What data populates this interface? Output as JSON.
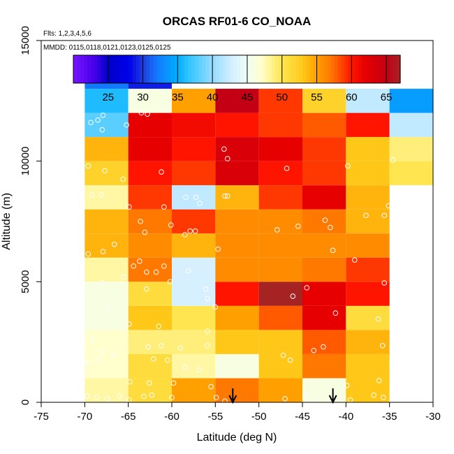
{
  "chart_data": {
    "type": "heatmap",
    "title": "ORCAS RF01-6 CO_NOAA",
    "flights_note": "Flts: 1,2,3,4,5,6",
    "mmdd_note": "MMDD: 0115,0118,0121,0123,0125,0125",
    "xlabel": "Latitude (deg N)",
    "ylabel": "Altitude (m)",
    "xlim": [
      -75,
      -30
    ],
    "ylim": [
      0,
      15000
    ],
    "x_ticks": [
      "-75",
      "-70",
      "-65",
      "-60",
      "-55",
      "-50",
      "-45",
      "-40",
      "-35",
      "-30"
    ],
    "y_ticks": [
      "0",
      "5000",
      "10000",
      "15000"
    ],
    "colorbar": {
      "range": [
        20,
        67
      ],
      "ticks": [
        "25",
        "30",
        "35",
        "40",
        "45",
        "50",
        "55",
        "60",
        "65"
      ]
    },
    "x_bin_edges": [
      -70,
      -65,
      -60,
      -55,
      -50,
      -45,
      -40,
      -35,
      -30
    ],
    "y_bin_height": 1000,
    "grid_values": [
      [
        48,
        51,
        55,
        57,
        55,
        46,
        53,
        null
      ],
      [
        47,
        51,
        48,
        46,
        53,
        57,
        53,
        null
      ],
      [
        47,
        49,
        49,
        53,
        53,
        58,
        54,
        null
      ],
      [
        46,
        53,
        50,
        55,
        58,
        62,
        51,
        null
      ],
      [
        46,
        51,
        43,
        60,
        67,
        62,
        60,
        null
      ],
      [
        48,
        57,
        43,
        56,
        56,
        57,
        59,
        null
      ],
      [
        54,
        56,
        54,
        56,
        56,
        56,
        56,
        null
      ],
      [
        54,
        57,
        59,
        56,
        56,
        57,
        54,
        null
      ],
      [
        48,
        59,
        42,
        54,
        59,
        62,
        54,
        null
      ],
      [
        52,
        60,
        59,
        63,
        60,
        59,
        53,
        50
      ],
      [
        54,
        62,
        60,
        63,
        62,
        59,
        53,
        49
      ],
      [
        38,
        62,
        61,
        60,
        59,
        58,
        60,
        42
      ],
      [
        36,
        46,
        55,
        65,
        59,
        52,
        42,
        34
      ],
      [
        32,
        29,
        null,
        null,
        null,
        null,
        null,
        null
      ]
    ],
    "samples": [
      [
        -69.3,
        11600
      ],
      [
        -68.5,
        11700
      ],
      [
        -67.9,
        11900
      ],
      [
        -68.0,
        11300
      ],
      [
        -65.2,
        11500
      ],
      [
        -63.5,
        12000
      ],
      [
        -62.8,
        11950
      ],
      [
        -54.0,
        10500
      ],
      [
        -53.6,
        10100
      ],
      [
        -46.8,
        9700
      ],
      [
        -39.8,
        9800
      ],
      [
        -34.6,
        10050
      ],
      [
        -69.6,
        9800
      ],
      [
        -67.7,
        9600
      ],
      [
        -65.6,
        9250
      ],
      [
        -61.2,
        9550
      ],
      [
        -69.2,
        8600
      ],
      [
        -68.1,
        8600
      ],
      [
        -58.4,
        8500
      ],
      [
        -57.2,
        8500
      ],
      [
        -56.8,
        8250
      ],
      [
        -53.9,
        8550
      ],
      [
        -53.6,
        8550
      ],
      [
        -64.9,
        8100
      ],
      [
        -60.9,
        8100
      ],
      [
        -63.6,
        7500
      ],
      [
        -60.1,
        7350
      ],
      [
        -63.1,
        7050
      ],
      [
        -57.9,
        7100
      ],
      [
        -57.3,
        7100
      ],
      [
        -58.5,
        6950
      ],
      [
        -47.9,
        7150
      ],
      [
        -45.5,
        7300
      ],
      [
        -42.4,
        7550
      ],
      [
        -41.8,
        7250
      ],
      [
        -37.7,
        7750
      ],
      [
        -35.6,
        7750
      ],
      [
        -35.1,
        8150
      ],
      [
        -34.7,
        7650
      ],
      [
        -34.1,
        7700
      ],
      [
        -69.6,
        6150
      ],
      [
        -67.9,
        6250
      ],
      [
        -66.6,
        6550
      ],
      [
        -54.7,
        6350
      ],
      [
        -41.5,
        6300
      ],
      [
        -39.0,
        5900
      ],
      [
        -64.4,
        5650
      ],
      [
        -63.7,
        5850
      ],
      [
        -65.5,
        5200
      ],
      [
        -62.9,
        5400
      ],
      [
        -61.8,
        5400
      ],
      [
        -60.9,
        5650
      ],
      [
        -58.1,
        5450
      ],
      [
        -60.2,
        5000
      ],
      [
        -68.0,
        4950
      ],
      [
        -62.9,
        4700
      ],
      [
        -56.1,
        4700
      ],
      [
        -55.9,
        4300
      ],
      [
        -55.0,
        3950
      ],
      [
        -46.1,
        4400
      ],
      [
        -44.5,
        4750
      ],
      [
        -41.2,
        3700
      ],
      [
        -35.6,
        4950
      ],
      [
        -67.3,
        3900
      ],
      [
        -64.9,
        3250
      ],
      [
        -61.5,
        3150
      ],
      [
        -55.9,
        2950
      ],
      [
        -36.3,
        3450
      ],
      [
        -69.2,
        2600
      ],
      [
        -68.0,
        2150
      ],
      [
        -62.7,
        2300
      ],
      [
        -61.2,
        2350
      ],
      [
        -59.0,
        2250
      ],
      [
        -55.9,
        2350
      ],
      [
        -42.6,
        2300
      ],
      [
        -43.7,
        2150
      ],
      [
        -35.8,
        2350
      ],
      [
        -69.6,
        1650
      ],
      [
        -68.3,
        1800
      ],
      [
        -66.7,
        1950
      ],
      [
        -62.1,
        1800
      ],
      [
        -60.5,
        1750
      ],
      [
        -58.5,
        1450
      ],
      [
        -56.8,
        1350
      ],
      [
        -47.2,
        1950
      ],
      [
        -46.4,
        1750
      ],
      [
        -62.6,
        800
      ],
      [
        -64.8,
        850
      ],
      [
        -59.8,
        800
      ],
      [
        -62.3,
        300
      ],
      [
        -63.2,
        250
      ],
      [
        -60.0,
        200
      ],
      [
        -55.5,
        650
      ],
      [
        -54.9,
        200
      ],
      [
        -53.9,
        50
      ],
      [
        -69.7,
        250
      ],
      [
        -68.6,
        200
      ],
      [
        -67.4,
        150
      ],
      [
        -66.0,
        250
      ],
      [
        -64.9,
        100
      ],
      [
        -47.0,
        150
      ],
      [
        -44.7,
        300
      ],
      [
        -39.9,
        700
      ],
      [
        -36.2,
        900
      ],
      [
        -36.8,
        300
      ],
      [
        -35.7,
        200
      ],
      [
        -39.5,
        100
      ]
    ],
    "arrows": [
      -53,
      -41.5
    ]
  }
}
